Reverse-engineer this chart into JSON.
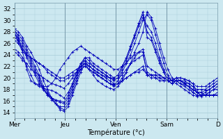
{
  "title": "",
  "xlabel": "Température (°c)",
  "ylabel": "",
  "bg_color": "#cce8f0",
  "grid_color": "#a8ccd8",
  "line_color": "#0000bb",
  "marker": "+",
  "xlim": [
    0,
    100
  ],
  "ylim": [
    13,
    33
  ],
  "yticks": [
    14,
    16,
    18,
    20,
    22,
    24,
    26,
    28,
    30,
    32
  ],
  "xtick_positions": [
    0,
    25,
    50,
    75,
    100
  ],
  "xtick_labels": [
    "Mer",
    "Jeu",
    "Ven",
    "Sam",
    "D"
  ],
  "series": [
    [
      28.5,
      28.0,
      27.0,
      25.5,
      24.5,
      23.0,
      21.5,
      19.5,
      18.0,
      16.5,
      15.5,
      14.5,
      14.2,
      15.0,
      17.0,
      19.0,
      21.0,
      22.5,
      21.5,
      20.5,
      19.5,
      19.0,
      18.5,
      18.2,
      18.0,
      18.5,
      19.5,
      21.0,
      22.5,
      24.5,
      26.0,
      28.0,
      31.5,
      30.5,
      28.5,
      26.0,
      23.5,
      21.5,
      20.0,
      19.5,
      19.0,
      18.5,
      18.0,
      17.5,
      17.0,
      16.8,
      17.0,
      17.5,
      18.0,
      18.5
    ],
    [
      28.0,
      27.5,
      26.5,
      25.0,
      23.5,
      22.0,
      20.5,
      18.5,
      17.5,
      16.5,
      15.5,
      14.8,
      14.5,
      15.5,
      17.5,
      19.5,
      21.5,
      23.0,
      22.0,
      21.5,
      20.5,
      20.0,
      19.5,
      19.0,
      18.8,
      19.5,
      21.0,
      22.5,
      24.0,
      26.0,
      28.0,
      30.0,
      31.0,
      30.0,
      27.5,
      25.0,
      22.5,
      20.5,
      19.5,
      19.0,
      18.5,
      18.0,
      17.5,
      17.0,
      16.8,
      17.0,
      17.5,
      18.0,
      18.5,
      19.0
    ],
    [
      27.5,
      27.0,
      26.0,
      24.5,
      23.0,
      21.5,
      20.0,
      18.0,
      17.0,
      16.2,
      15.5,
      15.0,
      15.0,
      16.0,
      18.0,
      20.0,
      22.0,
      23.5,
      23.0,
      22.0,
      21.5,
      21.0,
      20.5,
      20.0,
      19.5,
      20.0,
      21.5,
      23.0,
      25.0,
      27.0,
      29.0,
      30.5,
      29.0,
      28.0,
      26.0,
      23.5,
      21.5,
      20.0,
      19.5,
      19.5,
      19.0,
      18.8,
      18.5,
      18.0,
      17.5,
      17.5,
      17.8,
      18.0,
      18.5,
      19.0
    ],
    [
      27.0,
      26.5,
      25.5,
      24.0,
      22.5,
      21.0,
      19.5,
      18.2,
      17.2,
      16.5,
      16.0,
      15.8,
      15.5,
      16.5,
      18.5,
      20.5,
      22.5,
      23.5,
      23.5,
      22.5,
      22.0,
      21.5,
      21.0,
      20.5,
      20.0,
      20.5,
      22.0,
      23.5,
      25.5,
      27.5,
      29.5,
      31.0,
      28.0,
      27.0,
      25.0,
      23.0,
      21.0,
      19.5,
      19.5,
      20.0,
      19.5,
      19.5,
      19.0,
      18.5,
      18.0,
      18.0,
      18.0,
      18.5,
      19.0,
      19.5
    ],
    [
      26.5,
      26.0,
      25.0,
      23.5,
      22.0,
      20.5,
      19.0,
      18.0,
      17.0,
      16.5,
      16.2,
      16.0,
      15.8,
      17.0,
      19.0,
      21.0,
      22.5,
      23.0,
      22.5,
      22.0,
      21.5,
      21.0,
      20.5,
      20.0,
      20.0,
      20.5,
      22.0,
      23.5,
      25.5,
      27.5,
      29.5,
      31.5,
      27.0,
      26.5,
      24.5,
      22.5,
      21.0,
      19.5,
      19.5,
      20.0,
      20.0,
      19.8,
      19.5,
      19.0,
      18.5,
      18.5,
      18.5,
      19.0,
      19.5,
      20.0
    ],
    [
      25.0,
      24.5,
      23.5,
      22.0,
      20.5,
      19.0,
      18.5,
      18.2,
      18.0,
      17.8,
      17.5,
      17.0,
      16.5,
      17.5,
      19.0,
      20.5,
      21.5,
      22.0,
      21.5,
      21.0,
      20.5,
      20.0,
      19.5,
      19.0,
      18.8,
      19.0,
      20.0,
      21.0,
      22.5,
      23.5,
      24.5,
      25.0,
      22.0,
      21.5,
      21.0,
      20.5,
      20.0,
      19.5,
      19.0,
      19.5,
      19.5,
      19.2,
      19.0,
      18.5,
      17.5,
      17.0,
      17.0,
      17.5,
      18.0,
      18.0
    ],
    [
      24.5,
      24.0,
      23.0,
      22.5,
      21.5,
      21.0,
      20.5,
      20.0,
      19.5,
      19.0,
      18.8,
      18.5,
      18.2,
      19.0,
      20.0,
      21.0,
      22.0,
      22.5,
      22.0,
      21.5,
      21.0,
      20.5,
      20.2,
      20.0,
      19.8,
      20.0,
      20.5,
      21.5,
      22.5,
      23.0,
      23.5,
      24.0,
      21.0,
      20.5,
      20.5,
      20.5,
      20.0,
      20.0,
      19.5,
      20.0,
      20.0,
      19.8,
      19.5,
      19.0,
      17.5,
      17.0,
      17.0,
      17.0,
      17.0,
      17.5
    ],
    [
      28.5,
      27.0,
      24.5,
      21.5,
      19.5,
      19.0,
      18.8,
      18.5,
      18.5,
      19.0,
      20.0,
      21.5,
      22.5,
      23.5,
      24.5,
      25.0,
      25.5,
      25.0,
      24.5,
      24.0,
      23.5,
      23.0,
      22.5,
      22.0,
      21.5,
      21.5,
      22.0,
      22.5,
      23.5,
      24.0,
      24.5,
      24.5,
      20.5,
      20.0,
      20.0,
      19.5,
      19.5,
      19.5,
      19.0,
      19.5,
      19.5,
      19.0,
      18.5,
      17.5,
      17.0,
      17.0,
      17.0,
      17.0,
      17.0,
      17.0
    ],
    [
      28.0,
      26.0,
      24.5,
      24.0,
      23.5,
      23.0,
      22.5,
      22.0,
      21.5,
      21.0,
      20.5,
      20.0,
      20.0,
      20.5,
      21.0,
      21.5,
      22.0,
      22.5,
      22.0,
      21.5,
      21.0,
      20.5,
      20.0,
      19.5,
      19.0,
      19.0,
      19.5,
      20.0,
      20.5,
      21.0,
      21.5,
      22.0,
      20.5,
      20.5,
      20.5,
      20.0,
      20.0,
      19.5,
      19.5,
      19.5,
      19.5,
      19.0,
      18.5,
      18.0,
      17.5,
      17.0,
      17.0,
      17.0,
      17.0,
      17.0
    ],
    [
      28.0,
      26.5,
      25.0,
      24.0,
      23.5,
      23.0,
      22.5,
      22.0,
      21.0,
      20.5,
      20.0,
      19.5,
      19.5,
      20.0,
      20.5,
      21.0,
      21.5,
      22.0,
      21.5,
      21.0,
      20.5,
      20.0,
      19.5,
      19.0,
      18.5,
      19.0,
      19.5,
      20.0,
      20.5,
      21.0,
      21.0,
      21.5,
      20.5,
      20.5,
      20.0,
      20.0,
      19.5,
      19.5,
      19.0,
      19.5,
      19.5,
      19.0,
      18.5,
      18.0,
      17.5,
      17.5,
      17.0,
      17.0,
      17.0,
      17.0
    ]
  ]
}
